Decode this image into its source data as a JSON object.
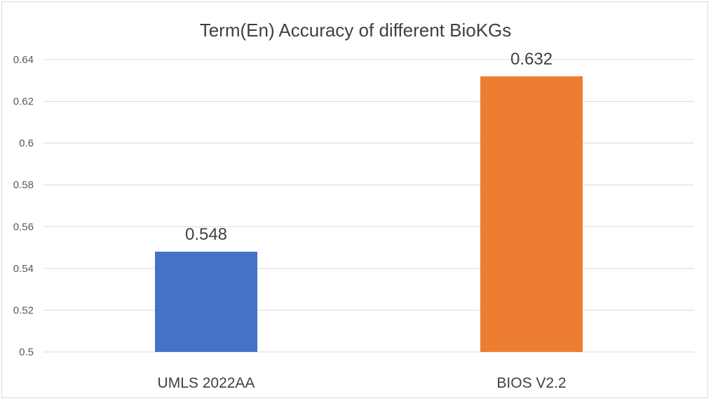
{
  "chart_data": {
    "type": "bar",
    "title": "Term(En) Accuracy of different BioKGs",
    "xlabel": "",
    "ylabel": "",
    "categories": [
      "UMLS 2022AA",
      "BIOS V2.2"
    ],
    "values": [
      0.548,
      0.632
    ],
    "data_labels": [
      "0.548",
      "0.632"
    ],
    "colors": [
      "#4472c4",
      "#ed7d31"
    ],
    "ylim": [
      0.5,
      0.64
    ],
    "yticks": [
      0.5,
      0.52,
      0.54,
      0.56,
      0.58,
      0.6,
      0.62,
      0.64
    ],
    "ytick_labels": [
      "0.5",
      "0.52",
      "0.54",
      "0.56",
      "0.58",
      "0.6",
      "0.62",
      "0.64"
    ],
    "grid": true,
    "legend": "none"
  }
}
